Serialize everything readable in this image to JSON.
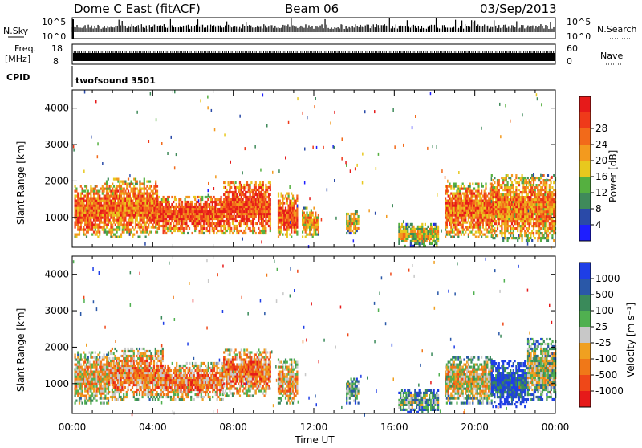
{
  "header": {
    "station": "Dome C East (fitACF)",
    "beam": "Beam 06",
    "date": "03/Sep/2013"
  },
  "status_panels": {
    "nsky_label": "N.Sky",
    "nsearch_label": "N.Search",
    "freq_label": "Freq.",
    "freq_unit": "[MHz]",
    "nave_label": "Nave",
    "cpid_label": "CPID",
    "cpid_value": "twofsound 3501",
    "noise_ticks": [
      "10^5",
      "10^0"
    ],
    "freq_ticks": [
      "18",
      "8"
    ],
    "nave_ticks": [
      "60",
      "0"
    ]
  },
  "chart_data": [
    {
      "type": "heatmap",
      "name": "power",
      "title": "",
      "xlabel": "",
      "ylabel": "Slant Range [km]",
      "x_ticks": [
        "00:00",
        "04:00",
        "08:00",
        "12:00",
        "16:00",
        "20:00",
        "00:00"
      ],
      "x_range_hours": [
        0,
        24
      ],
      "y_ticks": [
        1000,
        2000,
        3000,
        4000
      ],
      "ylim": [
        180,
        4500
      ],
      "colorbar_label": "Power [dB]",
      "colorbar_ticks": [
        "4",
        "8",
        "12",
        "16",
        "20",
        "24",
        "28"
      ],
      "colorbar_colors": [
        "#1e1eff",
        "#2a4aa8",
        "#3f8a5a",
        "#55b040",
        "#e8c81e",
        "#f39a1e",
        "#f26a1a",
        "#ef3a1a",
        "#e61a1a"
      ],
      "regions": [
        {
          "t0": 0.1,
          "t1": 1.6,
          "r0": 500,
          "r1": 1900,
          "level": 0.75
        },
        {
          "t0": 1.6,
          "t1": 4.2,
          "r0": 500,
          "r1": 2100,
          "level": 0.72
        },
        {
          "t0": 4.2,
          "t1": 7.5,
          "r0": 600,
          "r1": 1650,
          "level": 0.8
        },
        {
          "t0": 7.5,
          "t1": 9.8,
          "r0": 600,
          "r1": 2050,
          "level": 0.82
        },
        {
          "t0": 10.2,
          "t1": 11.2,
          "r0": 500,
          "r1": 1700,
          "level": 0.78
        },
        {
          "t0": 11.4,
          "t1": 12.2,
          "r0": 500,
          "r1": 1300,
          "level": 0.6
        },
        {
          "t0": 13.6,
          "t1": 14.2,
          "r0": 600,
          "r1": 1200,
          "level": 0.55
        },
        {
          "t0": 16.2,
          "t1": 18.2,
          "r0": 250,
          "r1": 850,
          "level": 0.5
        },
        {
          "t0": 18.5,
          "t1": 20.8,
          "r0": 500,
          "r1": 2000,
          "level": 0.72
        },
        {
          "t0": 20.8,
          "t1": 24.0,
          "r0": 400,
          "r1": 2200,
          "level": 0.68
        }
      ]
    },
    {
      "type": "heatmap",
      "name": "velocity",
      "title": "",
      "xlabel": "Time UT",
      "ylabel": "Slant Range [km]",
      "x_ticks": [
        "00:00",
        "04:00",
        "08:00",
        "12:00",
        "16:00",
        "20:00",
        "00:00"
      ],
      "x_range_hours": [
        0,
        24
      ],
      "y_ticks": [
        1000,
        2000,
        3000,
        4000
      ],
      "ylim": [
        180,
        4500
      ],
      "colorbar_label": "Velocity [m s⁻¹]",
      "colorbar_ticks": [
        "1000",
        "500",
        "100",
        "25",
        "-25",
        "-100",
        "-500",
        "-1000"
      ],
      "colorbar_colors": [
        "#1e3ee6",
        "#2a58a8",
        "#3a8a5a",
        "#50b050",
        "#c8c8c8",
        "#f0a020",
        "#f07818",
        "#ef4818",
        "#e61a1a"
      ],
      "regions": [
        {
          "t0": 0.1,
          "t1": 1.8,
          "r0": 500,
          "r1": 1900,
          "level": 0.6
        },
        {
          "t0": 1.8,
          "t1": 4.5,
          "r0": 600,
          "r1": 2000,
          "level": 0.68
        },
        {
          "t0": 4.5,
          "t1": 7.5,
          "r0": 600,
          "r1": 1600,
          "level": 0.7
        },
        {
          "t0": 7.5,
          "t1": 9.8,
          "r0": 700,
          "r1": 2000,
          "level": 0.72
        },
        {
          "t0": 10.2,
          "t1": 11.2,
          "r0": 500,
          "r1": 1700,
          "level": 0.65
        },
        {
          "t0": 13.6,
          "t1": 14.2,
          "r0": 500,
          "r1": 1200,
          "level": 0.4
        },
        {
          "t0": 16.2,
          "t1": 18.2,
          "r0": 250,
          "r1": 850,
          "level": 0.35
        },
        {
          "t0": 18.5,
          "t1": 20.8,
          "r0": 500,
          "r1": 1800,
          "level": 0.55
        },
        {
          "t0": 20.8,
          "t1": 22.6,
          "r0": 400,
          "r1": 1700,
          "level": 0.15
        },
        {
          "t0": 22.6,
          "t1": 24.0,
          "r0": 600,
          "r1": 2300,
          "level": 0.45
        }
      ]
    }
  ]
}
